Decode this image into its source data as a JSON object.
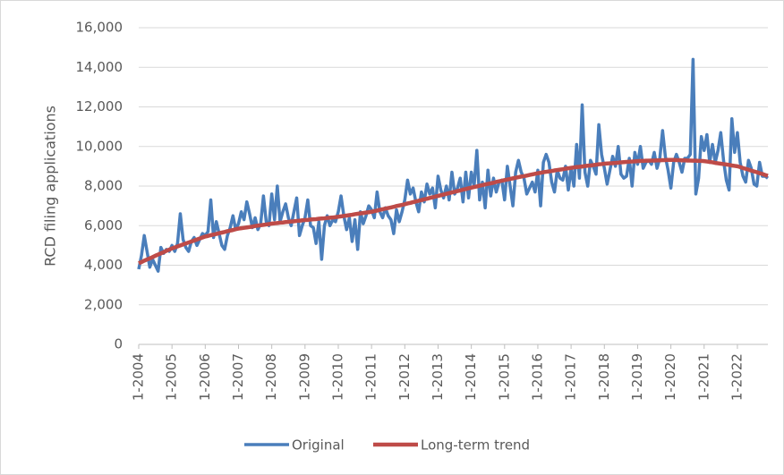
{
  "chart_data": {
    "type": "line",
    "y_label": "RCD filing applications",
    "categories": [
      "1-2004",
      null,
      null,
      null,
      null,
      null,
      null,
      null,
      null,
      null,
      null,
      null,
      "1-2005",
      null,
      null,
      null,
      null,
      null,
      null,
      null,
      null,
      null,
      null,
      null,
      "1-2006",
      null,
      null,
      null,
      null,
      null,
      null,
      null,
      null,
      null,
      null,
      null,
      "1-2007",
      null,
      null,
      null,
      null,
      null,
      null,
      null,
      null,
      null,
      null,
      null,
      "1-2008",
      null,
      null,
      null,
      null,
      null,
      null,
      null,
      null,
      null,
      null,
      null,
      "1-2009",
      null,
      null,
      null,
      null,
      null,
      null,
      null,
      null,
      null,
      null,
      null,
      "1-2010",
      null,
      null,
      null,
      null,
      null,
      null,
      null,
      null,
      null,
      null,
      null,
      "1-2011",
      null,
      null,
      null,
      null,
      null,
      null,
      null,
      null,
      null,
      null,
      null,
      "1-2012",
      null,
      null,
      null,
      null,
      null,
      null,
      null,
      null,
      null,
      null,
      null,
      "1-2013",
      null,
      null,
      null,
      null,
      null,
      null,
      null,
      null,
      null,
      null,
      null,
      "1-2014",
      null,
      null,
      null,
      null,
      null,
      null,
      null,
      null,
      null,
      null,
      null,
      "1-2015",
      null,
      null,
      null,
      null,
      null,
      null,
      null,
      null,
      null,
      null,
      null,
      "1-2016",
      null,
      null,
      null,
      null,
      null,
      null,
      null,
      null,
      null,
      null,
      null,
      "1-2017",
      null,
      null,
      null,
      null,
      null,
      null,
      null,
      null,
      null,
      null,
      null,
      "1-2018",
      null,
      null,
      null,
      null,
      null,
      null,
      null,
      null,
      null,
      null,
      null,
      "1-2019",
      null,
      null,
      null,
      null,
      null,
      null,
      null,
      null,
      null,
      null,
      null,
      "1-2020",
      null,
      null,
      null,
      null,
      null,
      null,
      null,
      null,
      null,
      null,
      null,
      "1-2021",
      null,
      null,
      null,
      null,
      null,
      null,
      null,
      null,
      null,
      null,
      null,
      "1-2022",
      null,
      null,
      null,
      null,
      null,
      null,
      null,
      null,
      null,
      null,
      null
    ],
    "series": [
      {
        "name": "Original",
        "color": "#4a7ebb",
        "values": [
          3800,
          4500,
          5500,
          4700,
          3900,
          4300,
          4000,
          3700,
          4900,
          4600,
          4800,
          4700,
          5000,
          4700,
          5100,
          6600,
          5300,
          4900,
          4700,
          5200,
          5400,
          5000,
          5300,
          5600,
          5500,
          5700,
          7300,
          5400,
          6200,
          5600,
          5000,
          4800,
          5500,
          5900,
          6500,
          5800,
          6100,
          6700,
          6300,
          7200,
          6600,
          5900,
          6400,
          5800,
          6100,
          7500,
          6200,
          6000,
          7600,
          6300,
          8000,
          6200,
          6700,
          7100,
          6400,
          6000,
          6700,
          7400,
          5500,
          6000,
          6400,
          7300,
          6000,
          5900,
          5100,
          6200,
          4300,
          6000,
          6500,
          6000,
          6300,
          6200,
          6700,
          7500,
          6500,
          5800,
          6400,
          5200,
          6300,
          4800,
          6700,
          6100,
          6500,
          7000,
          6800,
          6400,
          7700,
          6700,
          6400,
          6900,
          6500,
          6300,
          5600,
          6800,
          6200,
          6700,
          7300,
          8300,
          7600,
          7900,
          7200,
          6700,
          7700,
          7200,
          8100,
          7600,
          7900,
          6900,
          8500,
          7800,
          7400,
          8000,
          7300,
          8700,
          7600,
          7900,
          8400,
          7200,
          8700,
          7400,
          8700,
          8000,
          9800,
          7300,
          8200,
          6900,
          8800,
          7500,
          8400,
          7700,
          8200,
          8300,
          7300,
          9000,
          8000,
          7000,
          8700,
          9300,
          8700,
          8400,
          7600,
          7900,
          8200,
          7700,
          8800,
          7000,
          9200,
          9600,
          9200,
          8200,
          7700,
          8800,
          8400,
          8300,
          9000,
          7800,
          8900,
          8000,
          10100,
          8400,
          12100,
          8700,
          8000,
          9300,
          9000,
          8600,
          11100,
          9600,
          8900,
          8100,
          8800,
          9500,
          9000,
          10000,
          8600,
          8400,
          8500,
          9400,
          8000,
          9700,
          9100,
          10000,
          8900,
          9200,
          9300,
          9100,
          9700,
          8900,
          9400,
          10800,
          9500,
          8800,
          7900,
          9200,
          9600,
          9200,
          8700,
          9400,
          9400,
          9600,
          14400,
          7600,
          8400,
          10500,
          9800,
          10600,
          9200,
          10100,
          9200,
          9800,
          10700,
          9300,
          8300,
          7800,
          11400,
          9700,
          10700,
          9200,
          8500,
          8200,
          9300,
          8900,
          8100,
          8000,
          9200,
          8500,
          8500,
          8400
        ]
      },
      {
        "name": "Long-term trend",
        "color": "#be4b48",
        "values": [
          4100,
          4160,
          4230,
          4290,
          4350,
          4410,
          4480,
          4540,
          4600,
          4660,
          4730,
          4790,
          4850,
          4900,
          4950,
          5000,
          5050,
          5100,
          5150,
          5200,
          5250,
          5300,
          5350,
          5400,
          5450,
          5480,
          5520,
          5550,
          5580,
          5620,
          5650,
          5680,
          5720,
          5750,
          5780,
          5820,
          5850,
          5870,
          5890,
          5910,
          5930,
          5950,
          5980,
          6000,
          6020,
          6040,
          6060,
          6080,
          6100,
          6120,
          6130,
          6150,
          6160,
          6180,
          6190,
          6210,
          6220,
          6240,
          6250,
          6270,
          6280,
          6290,
          6310,
          6320,
          6330,
          6350,
          6360,
          6370,
          6390,
          6400,
          6410,
          6430,
          6450,
          6470,
          6490,
          6510,
          6530,
          6550,
          6580,
          6600,
          6620,
          6640,
          6660,
          6680,
          6700,
          6730,
          6760,
          6800,
          6830,
          6860,
          6890,
          6920,
          6950,
          6990,
          7020,
          7050,
          7080,
          7120,
          7150,
          7190,
          7220,
          7260,
          7290,
          7330,
          7360,
          7400,
          7430,
          7470,
          7500,
          7540,
          7570,
          7610,
          7640,
          7680,
          7710,
          7750,
          7780,
          7820,
          7850,
          7890,
          7920,
          7950,
          7980,
          8020,
          8050,
          8080,
          8110,
          8140,
          8170,
          8210,
          8240,
          8270,
          8300,
          8330,
          8360,
          8390,
          8420,
          8450,
          8480,
          8500,
          8530,
          8560,
          8590,
          8620,
          8650,
          8670,
          8700,
          8720,
          8740,
          8760,
          8790,
          8810,
          8830,
          8850,
          8880,
          8900,
          8920,
          8940,
          8960,
          8970,
          8990,
          9010,
          9030,
          9040,
          9060,
          9080,
          9100,
          9110,
          9130,
          9140,
          9150,
          9160,
          9170,
          9180,
          9200,
          9210,
          9220,
          9230,
          9240,
          9250,
          9260,
          9270,
          9270,
          9280,
          9280,
          9290,
          9290,
          9300,
          9300,
          9310,
          9310,
          9320,
          9320,
          9320,
          9310,
          9310,
          9300,
          9300,
          9290,
          9290,
          9280,
          9280,
          9270,
          9270,
          9260,
          9240,
          9220,
          9200,
          9170,
          9150,
          9130,
          9110,
          9090,
          9070,
          9040,
          9020,
          9000,
          8960,
          8910,
          8870,
          8830,
          8780,
          8740,
          8700,
          8650,
          8610,
          8560,
          8520
        ]
      }
    ],
    "ylim": [
      0,
      16000
    ],
    "yticks": [
      0,
      {
        "value": 2000,
        "label": "2,000"
      },
      {
        "value": 4000,
        "label": "4,000"
      },
      {
        "value": 6000,
        "label": "6,000"
      },
      {
        "value": 8000,
        "label": "8,000"
      },
      {
        "value": 10000,
        "label": "10,000"
      },
      {
        "value": 12000,
        "label": "12,000"
      },
      {
        "value": 14000,
        "label": "14,000"
      },
      {
        "value": 16000,
        "label": "16,000"
      }
    ],
    "grid": true,
    "legend": "bottom"
  }
}
